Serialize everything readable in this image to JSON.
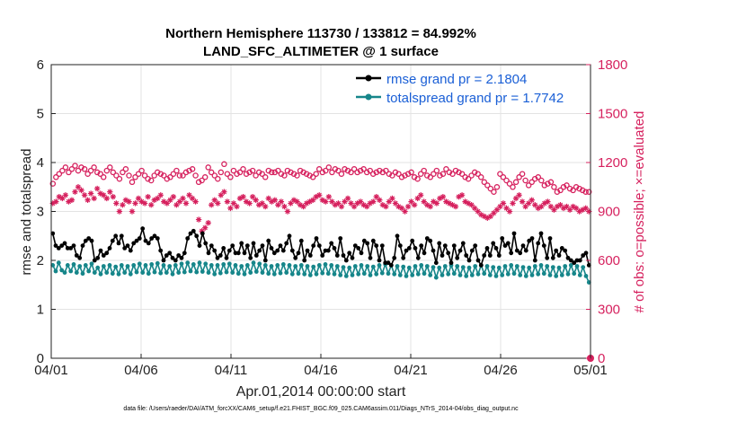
{
  "chart_data": {
    "type": "line",
    "title": "Northern Hemisphere 113730 / 133812 = 84.992%",
    "subtitle": "LAND_SFC_ALTIMETER @ 1 surface",
    "xlabel": "Apr.01,2014 00:00:00 start",
    "ylabel": "rmse and totalspread",
    "ylabel_right": "# of obs: o=possible; ×=evaluated",
    "ylim": [
      0,
      6
    ],
    "ylim_right": [
      0,
      1800
    ],
    "xlim": [
      0,
      30
    ],
    "x_ticks": [
      0,
      5,
      10,
      15,
      20,
      25,
      30
    ],
    "x_tick_labels": [
      "04/01",
      "04/06",
      "04/11",
      "04/16",
      "04/21",
      "04/26",
      "05/01"
    ],
    "y_tick_labels": [
      "0",
      "1",
      "2",
      "3",
      "4",
      "5",
      "6"
    ],
    "y_right_tick_labels": [
      "0",
      "300",
      "600",
      "900",
      "1200",
      "1500",
      "1800"
    ],
    "legend_position": "top-right",
    "footer": "data file: /Users/raeder/DAI/ATM_forcXX/CAM6_setup/f.e21.FHIST_BGC.f09_025.CAM6assim.011/Diags_NTrS_2014-04/obs_diag_output.nc",
    "colors": {
      "rmse": "#000000",
      "spread": "#16868a",
      "obs": "#d6215e",
      "legend_text": "#1a5fd6"
    },
    "series": [
      {
        "name": "rmse grand pr = 2.1804",
        "axis": "left",
        "values": [
          2.55,
          2.3,
          2.25,
          2.3,
          2.35,
          2.25,
          2.25,
          2.3,
          2.1,
          2.05,
          2.3,
          2.4,
          2.45,
          2.4,
          2.0,
          2.05,
          2.2,
          2.1,
          2.15,
          2.25,
          2.4,
          2.5,
          2.35,
          2.5,
          2.25,
          2.3,
          2.2,
          2.35,
          2.4,
          2.45,
          2.65,
          2.4,
          2.35,
          2.45,
          2.5,
          2.45,
          2.2,
          2.0,
          2.1,
          2.15,
          2.05,
          2.0,
          2.1,
          2.05,
          2.15,
          2.45,
          2.55,
          2.6,
          2.5,
          2.3,
          2.55,
          2.35,
          2.15,
          2.3,
          2.2,
          2.05,
          2.1,
          2.25,
          2.05,
          2.2,
          2.3,
          2.15,
          2.15,
          2.35,
          2.15,
          2.3,
          2.05,
          2.35,
          2.1,
          2.2,
          2.3,
          2.0,
          2.4,
          2.25,
          2.15,
          2.2,
          2.3,
          2.2,
          2.35,
          2.5,
          2.2,
          2.05,
          2.15,
          2.4,
          2.0,
          2.2,
          2.1,
          2.3,
          2.45,
          2.3,
          2.1,
          2.2,
          2.2,
          2.35,
          2.25,
          2.1,
          2.45,
          2.1,
          2.0,
          2.15,
          2.05,
          2.3,
          2.25,
          2.15,
          2.4,
          2.35,
          2.05,
          2.4,
          2.3,
          2.0,
          2.3,
          1.95,
          1.95,
          1.9,
          2.05,
          2.5,
          2.3,
          2.05,
          2.2,
          2.25,
          2.4,
          2.25,
          2.05,
          2.3,
          2.15,
          2.45,
          2.4,
          2.2,
          1.95,
          2.35,
          2.1,
          2.3,
          2.15,
          1.95,
          2.3,
          2.05,
          2.2,
          2.35,
          2.1,
          2.0,
          2.2,
          2.3,
          2.0,
          1.9,
          2.1,
          2.25,
          2.1,
          2.35,
          2.25,
          2.1,
          2.45,
          2.3,
          2.35,
          2.15,
          2.55,
          2.2,
          2.15,
          2.3,
          2.2,
          2.4,
          2.45,
          2.0,
          2.35,
          2.55,
          2.3,
          2.05,
          2.45,
          2.05,
          2.2,
          2.1,
          2.25,
          2.2,
          2.05,
          2.0,
          1.95,
          2.0,
          2.0,
          2.1,
          2.15,
          1.9
        ]
      },
      {
        "name": "totalspread grand pr = 1.7742",
        "axis": "left",
        "values": [
          1.9,
          1.78,
          1.95,
          1.8,
          1.75,
          1.9,
          1.78,
          1.92,
          1.75,
          1.88,
          1.73,
          1.9,
          1.78,
          1.93,
          1.75,
          1.85,
          1.72,
          1.88,
          1.75,
          1.9,
          1.73,
          1.87,
          1.72,
          1.9,
          1.75,
          1.88,
          1.72,
          1.9,
          1.76,
          1.93,
          1.75,
          1.9,
          1.73,
          1.92,
          1.76,
          1.94,
          1.74,
          1.9,
          1.75,
          1.88,
          1.72,
          1.9,
          1.75,
          1.93,
          1.76,
          1.95,
          1.78,
          1.92,
          1.76,
          1.95,
          1.77,
          1.93,
          1.75,
          1.9,
          1.72,
          1.9,
          1.74,
          1.92,
          1.76,
          1.93,
          1.75,
          1.9,
          1.73,
          1.88,
          1.72,
          1.9,
          1.75,
          1.95,
          1.77,
          1.93,
          1.75,
          1.9,
          1.73,
          1.88,
          1.72,
          1.9,
          1.74,
          1.92,
          1.75,
          1.9,
          1.72,
          1.88,
          1.73,
          1.9,
          1.72,
          1.88,
          1.7,
          1.87,
          1.72,
          1.9,
          1.74,
          1.92,
          1.73,
          1.9,
          1.72,
          1.88,
          1.7,
          1.86,
          1.68,
          1.85,
          1.7,
          1.88,
          1.72,
          1.9,
          1.73,
          1.88,
          1.7,
          1.87,
          1.72,
          1.9,
          1.74,
          1.92,
          1.73,
          1.9,
          1.72,
          1.88,
          1.7,
          1.87,
          1.68,
          1.85,
          1.7,
          1.88,
          1.72,
          1.9,
          1.73,
          1.88,
          1.7,
          1.86,
          1.65,
          1.85,
          1.7,
          1.88,
          1.72,
          1.9,
          1.73,
          1.88,
          1.7,
          1.86,
          1.68,
          1.85,
          1.7,
          1.88,
          1.72,
          1.9,
          1.73,
          1.88,
          1.7,
          1.86,
          1.68,
          1.85,
          1.7,
          1.88,
          1.72,
          1.9,
          1.73,
          1.88,
          1.7,
          1.86,
          1.68,
          1.85,
          1.7,
          1.88,
          1.72,
          1.9,
          1.73,
          1.88,
          1.7,
          1.86,
          1.68,
          1.85,
          1.7,
          1.88,
          1.72,
          1.9,
          1.73,
          1.88,
          1.7,
          1.86,
          1.68,
          1.55
        ]
      },
      {
        "name": "possible",
        "axis": "right",
        "marker": "o",
        "values": [
          1070,
          1110,
          1130,
          1150,
          1170,
          1140,
          1160,
          1180,
          1150,
          1170,
          1160,
          1130,
          1150,
          1170,
          1140,
          1130,
          1110,
          1150,
          1170,
          1140,
          1120,
          1100,
          1140,
          1160,
          1120,
          1080,
          1110,
          1130,
          1150,
          1120,
          1100,
          1090,
          1120,
          1140,
          1130,
          1120,
          1100,
          1110,
          1130,
          1150,
          1120,
          1120,
          1140,
          1150,
          1160,
          1120,
          1080,
          1090,
          1110,
          1170,
          1140,
          1120,
          1100,
          1140,
          1190,
          1130,
          1110,
          1150,
          1130,
          1140,
          1160,
          1130,
          1140,
          1150,
          1120,
          1140,
          1130,
          1110,
          1150,
          1140,
          1140,
          1150,
          1130,
          1120,
          1150,
          1140,
          1130,
          1120,
          1150,
          1140,
          1130,
          1120,
          1110,
          1130,
          1160,
          1140,
          1150,
          1170,
          1140,
          1160,
          1150,
          1130,
          1160,
          1150,
          1140,
          1160,
          1140,
          1150,
          1160,
          1140,
          1150,
          1130,
          1140,
          1150,
          1140,
          1150,
          1130,
          1120,
          1140,
          1130,
          1110,
          1120,
          1130,
          1140,
          1110,
          1100,
          1130,
          1150,
          1120,
          1110,
          1130,
          1150,
          1120,
          1130,
          1160,
          1140,
          1130,
          1150,
          1140,
          1130,
          1110,
          1100,
          1120,
          1140,
          1130,
          1110,
          1080,
          1060,
          1040,
          1020,
          1050,
          1130,
          1110,
          1090,
          1070,
          1050,
          1080,
          1110,
          1130,
          1090,
          1060,
          1080,
          1100,
          1110,
          1090,
          1060,
          1070,
          1080,
          1050,
          1020,
          1030,
          1050,
          1060,
          1040,
          1030,
          1050,
          1040,
          1030,
          1020,
          1020
        ]
      },
      {
        "name": "evaluated",
        "axis": "right",
        "marker": "x",
        "values": [
          950,
          960,
          990,
          980,
          1000,
          960,
          970,
          1020,
          1050,
          1030,
          1000,
          970,
          1010,
          980,
          1040,
          1010,
          1000,
          980,
          1020,
          990,
          950,
          900,
          940,
          970,
          960,
          900,
          950,
          980,
          960,
          950,
          990,
          940,
          970,
          980,
          1000,
          960,
          950,
          970,
          990,
          940,
          960,
          980,
          950,
          1000,
          980,
          960,
          850,
          780,
          800,
          830,
          940,
          970,
          950,
          1000,
          1020,
          960,
          920,
          950,
          930,
          980,
          990,
          960,
          950,
          990,
          970,
          940,
          950,
          930,
          980,
          960,
          970,
          940,
          960,
          930,
          900,
          950,
          970,
          960,
          940,
          930,
          950,
          960,
          970,
          990,
          1000,
          970,
          960,
          990,
          960,
          940,
          950,
          930,
          960,
          980,
          950,
          930,
          950,
          960,
          940,
          930,
          950,
          960,
          990,
          970,
          940,
          930,
          960,
          980,
          950,
          930,
          920,
          900,
          930,
          960,
          940,
          980,
          1000,
          960,
          940,
          930,
          960,
          950,
          980,
          990,
          960,
          950,
          940,
          930,
          990,
          1000,
          960,
          950,
          940,
          920,
          900,
          880,
          870,
          860,
          870,
          890,
          910,
          930,
          950,
          920,
          900,
          950,
          980,
          1000,
          960,
          930,
          950,
          970,
          940,
          920,
          930,
          950,
          960,
          930,
          910,
          930,
          940,
          920,
          930,
          910,
          930,
          920,
          900,
          910,
          920,
          900
        ]
      }
    ]
  }
}
